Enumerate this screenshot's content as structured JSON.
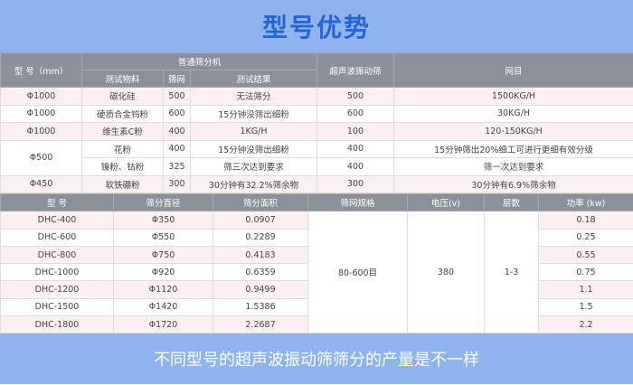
{
  "header": {
    "title": "型号优势"
  },
  "table1": {
    "columns": {
      "model": "型 号（mm）",
      "ordinary": "普通筛分机",
      "material": "测试物料",
      "mesh": "筛网",
      "result": "测试结果",
      "ultrasonic": "超声波振动筛",
      "grade": "网目"
    },
    "rows": [
      [
        "Φ1000",
        "碳化硅",
        "500",
        "无法筛分",
        "500",
        "1500KG/H"
      ],
      [
        "Φ1000",
        "硬质合金钨粉",
        "600",
        "15分钟没筛出细粉",
        "600",
        "30KG/H"
      ],
      [
        "Φ1000",
        "维生素C粉",
        "400",
        "1KG/H",
        "100",
        "120-150KG/H"
      ],
      [
        "Φ500",
        "花粉",
        "400",
        "15分钟没筛出细粉",
        "400",
        "15分钟筛出20%细工可进行更细有效分级"
      ],
      [
        "镍粉、钴粉",
        "325",
        "筛三次达到要求",
        "400",
        "筛一次达到要求"
      ],
      [
        "Φ450",
        "软铁硼粉",
        "300",
        "30分钟有32.2%筛余物",
        "300",
        "30分钟有6.9%筛余物"
      ]
    ]
  },
  "table2": {
    "columns": [
      "型 号",
      "筛分直径",
      "筛分面积",
      "筛网规格",
      "电压(v)",
      "层数",
      "功率 (kw)"
    ],
    "rows": [
      [
        "DHC-400",
        "Φ350",
        "0.0907",
        "0.18"
      ],
      [
        "DHC-600",
        "Φ550",
        "0.2289",
        "0.25"
      ],
      [
        "DHC-800",
        "Φ750",
        "0.4183",
        "0.55"
      ],
      [
        "DHC-1000",
        "Φ920",
        "0.6359",
        "0.75"
      ],
      [
        "DHC-1200",
        "Φ1120",
        "0.9499",
        "1.1"
      ],
      [
        "DHC-1500",
        "Φ1420",
        "1.5386",
        "1.5"
      ],
      [
        "DHC-1800",
        "Φ1720",
        "2.2687",
        "2.2"
      ]
    ],
    "mesh": "80-600目",
    "voltage": "380",
    "layers": "1-3"
  },
  "footer": {
    "text": "不同型号的超声波振动筛筛分的产量是不一样"
  }
}
